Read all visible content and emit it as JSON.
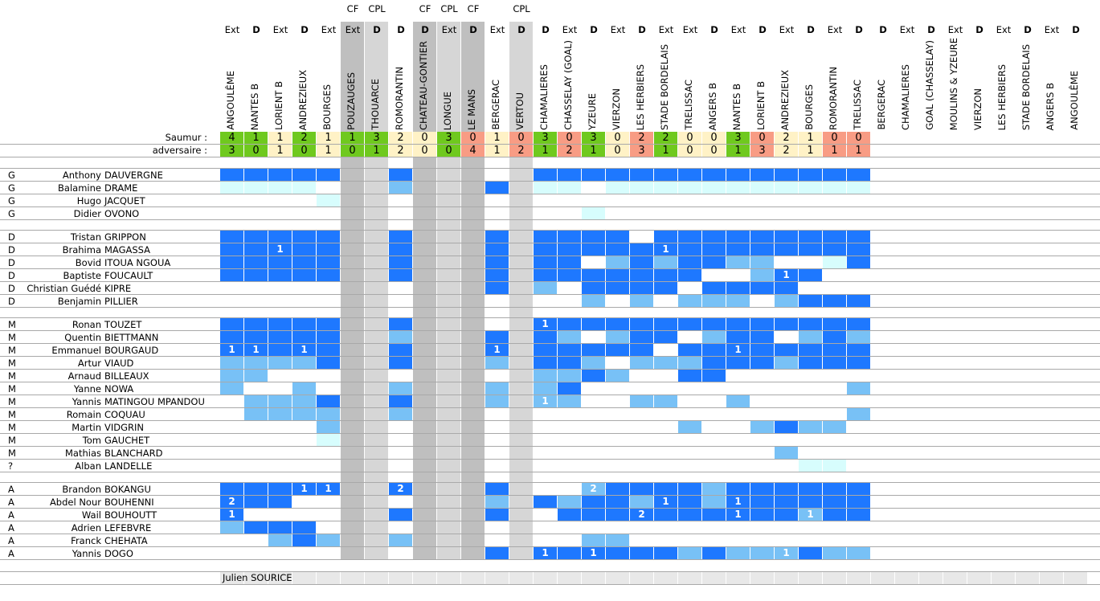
{
  "colors": {
    "win": "#6fc91e",
    "draw": "#fff2c6",
    "loss": "#f89c84",
    "cf_column": "#bfbfbf",
    "cpl_column": "#d6d6d6",
    "level_D": "#1e78ff",
    "level_M": "#78c1f6",
    "level_L": "#d7fdfd",
    "footer": "#e8e8e8"
  },
  "level_codes": {
    "D": "full match",
    "M": "partial",
    "L": "bench",
    ".": "none"
  },
  "score_labels": {
    "saumur": "Saumur :",
    "adversaire": "adversaire :"
  },
  "columns": [
    {
      "opponent": "ANGOULÊME",
      "venue": "Ext",
      "competition": ""
    },
    {
      "opponent": "NANTES B",
      "venue": "D",
      "competition": ""
    },
    {
      "opponent": "LORIENT B",
      "venue": "Ext",
      "competition": ""
    },
    {
      "opponent": "ANDREZIEUX",
      "venue": "D",
      "competition": ""
    },
    {
      "opponent": "BOURGES",
      "venue": "Ext",
      "competition": ""
    },
    {
      "opponent": "POUZAUGES",
      "venue": "Ext",
      "competition": "CF"
    },
    {
      "opponent": "THOUARCE",
      "venue": "D",
      "competition": "CPL"
    },
    {
      "opponent": "ROMORANTIN",
      "venue": "D",
      "competition": ""
    },
    {
      "opponent": "CHATEAU-GONTIER",
      "venue": "D",
      "competition": "CF"
    },
    {
      "opponent": "LONGUE",
      "venue": "Ext",
      "competition": "CPL"
    },
    {
      "opponent": "LE MANS",
      "venue": "D",
      "competition": "CF"
    },
    {
      "opponent": "BERGERAC",
      "venue": "Ext",
      "competition": ""
    },
    {
      "opponent": "VERTOU",
      "venue": "D",
      "competition": "CPL"
    },
    {
      "opponent": "CHAMALIERES",
      "venue": "D",
      "competition": ""
    },
    {
      "opponent": "CHASSELAY (GOAL)",
      "venue": "Ext",
      "competition": ""
    },
    {
      "opponent": "YZEURE",
      "venue": "D",
      "competition": ""
    },
    {
      "opponent": "VIERZON",
      "venue": "Ext",
      "competition": ""
    },
    {
      "opponent": "LES HERBIERS",
      "venue": "D",
      "competition": ""
    },
    {
      "opponent": "STADE BORDELAIS",
      "venue": "Ext",
      "competition": ""
    },
    {
      "opponent": "TRELISSAC",
      "venue": "Ext",
      "competition": ""
    },
    {
      "opponent": "ANGERS B",
      "venue": "D",
      "competition": ""
    },
    {
      "opponent": "NANTES B",
      "venue": "Ext",
      "competition": ""
    },
    {
      "opponent": "LORIENT B",
      "venue": "D",
      "competition": ""
    },
    {
      "opponent": "ANDREZIEUX",
      "venue": "Ext",
      "competition": ""
    },
    {
      "opponent": "BOURGES",
      "venue": "D",
      "competition": ""
    },
    {
      "opponent": "ROMORANTIN",
      "venue": "Ext",
      "competition": ""
    },
    {
      "opponent": "TRELISSAC",
      "venue": "D",
      "competition": ""
    },
    {
      "opponent": "BERGERAC",
      "venue": "D",
      "competition": ""
    },
    {
      "opponent": "CHAMALIERES",
      "venue": "Ext",
      "competition": ""
    },
    {
      "opponent": "GOAL (CHASSELAY)",
      "venue": "D",
      "competition": ""
    },
    {
      "opponent": "MOULINS & YZEURE",
      "venue": "Ext",
      "competition": ""
    },
    {
      "opponent": "VIERZON",
      "venue": "D",
      "competition": ""
    },
    {
      "opponent": "LES HERBIERS",
      "venue": "Ext",
      "competition": ""
    },
    {
      "opponent": "STADE BORDELAIS",
      "venue": "D",
      "competition": ""
    },
    {
      "opponent": "ANGERS B",
      "venue": "Ext",
      "competition": ""
    },
    {
      "opponent": "ANGOULÊME",
      "venue": "D",
      "competition": ""
    }
  ],
  "scores": {
    "saumur": [
      4,
      1,
      1,
      2,
      1,
      1,
      3,
      2,
      0,
      3,
      0,
      1,
      0,
      3,
      0,
      3,
      0,
      2,
      2,
      0,
      0,
      3,
      0,
      2,
      1,
      0,
      0
    ],
    "adversaire": [
      3,
      0,
      1,
      0,
      1,
      0,
      1,
      2,
      0,
      0,
      4,
      1,
      2,
      1,
      2,
      1,
      0,
      3,
      1,
      0,
      0,
      1,
      3,
      2,
      1,
      1,
      1
    ]
  },
  "groups": [
    {
      "players": [
        {
          "pos": "G",
          "first": "Anthony",
          "last": "DAUVERGNE",
          "cells": "DDDDD..D.....DDDDDDDDDDDDDD",
          "goals": {}
        },
        {
          "pos": "G",
          "first": "Balamine",
          "last": "DRAME",
          "cells": "LLLL...M...D.LL.LLLLLLLLLLL",
          "goals": {}
        },
        {
          "pos": "G",
          "first": "Hugo",
          "last": "JACQUET",
          "cells": "....L......................",
          "goals": {}
        },
        {
          "pos": "G",
          "first": "Didier",
          "last": "OVONO",
          "cells": "...............L...........",
          "goals": {}
        }
      ]
    },
    {
      "players": [
        {
          "pos": "D",
          "first": "Tristan",
          "last": "GRIPPON",
          "cells": "DDDDD..D...D.DDDD.DDDDDDDDD",
          "goals": {}
        },
        {
          "pos": "D",
          "first": "Brahima",
          "last": "MAGASSA",
          "cells": "DDDDD..D...D.DDDDDDDDDDDDDD",
          "goals": {
            "3": 1,
            "19": 1
          }
        },
        {
          "pos": "D",
          "first": "Bovid",
          "last": "ITOUA NGOUA",
          "cells": "DDDDD..D...D.DD.MDMDDMM..LD",
          "goals": {}
        },
        {
          "pos": "D",
          "first": "Baptiste",
          "last": "FOUCAULT",
          "cells": "DDDDD..D...D.DDDDDDD..MDD..",
          "goals": {
            "24": 1
          }
        },
        {
          "pos": "D",
          "first": "Christian Guédé",
          "last": "KIPRE",
          "cells": "...........D.M.DDDD.DDDD...",
          "goals": {}
        },
        {
          "pos": "D",
          "first": "Benjamin",
          "last": "PILLIER",
          "cells": "...............M.M.MMM.MDDD",
          "goals": {}
        }
      ]
    },
    {
      "players": [
        {
          "pos": "M",
          "first": "Ronan",
          "last": "TOUZET",
          "cells": "DDDDD..D.....DDDDDDDDDDDDDD",
          "goals": {
            "14": 1
          }
        },
        {
          "pos": "M",
          "first": "Quentin",
          "last": "BIETTMANN",
          "cells": "DDDDD..M...D.DM.MDD.MDD.MDM",
          "goals": {}
        },
        {
          "pos": "M",
          "first": "Emmanuel",
          "last": "BOURGAUD",
          "cells": "DDDDD..D...D.DDDDD.DDDDDDDD",
          "goals": {
            "1": 1,
            "2": 1,
            "4": 1,
            "12": 1,
            "22": 1
          }
        },
        {
          "pos": "M",
          "first": "Artur",
          "last": "VIAUD",
          "cells": "MMMMD..D...M.DDM.MMMDDDMDDD",
          "goals": {}
        },
        {
          "pos": "M",
          "first": "Arnaud",
          "last": "BILLEAUX",
          "cells": "MM...........MMDM..DD......",
          "goals": {}
        },
        {
          "pos": "M",
          "first": "Yanne",
          "last": "NOWA",
          "cells": "M..M...M...M.MD...........M",
          "goals": {}
        },
        {
          "pos": "M",
          "first": "Yannis",
          "last": "MATINGOU MPANDOU",
          "cells": ".MMMD..D...M.MM..MM..M.....",
          "goals": {
            "14": 1
          }
        },
        {
          "pos": "M",
          "first": "Romain",
          "last": "COQUAU",
          "cells": ".MMMM..M..................M",
          "goals": {}
        },
        {
          "pos": "M",
          "first": "Martin",
          "last": "VIDGRIN",
          "cells": "....M..............M..MDMM.",
          "goals": {}
        },
        {
          "pos": "M",
          "first": "Tom",
          "last": "GAUCHET",
          "cells": "....L......................",
          "goals": {}
        },
        {
          "pos": "M",
          "first": "Mathias",
          "last": "BLANCHARD",
          "cells": ".......................M...",
          "goals": {}
        },
        {
          "pos": "?",
          "first": "Alban",
          "last": "LANDELLE",
          "cells": "........................LL.",
          "goals": {}
        }
      ]
    },
    {
      "players": [
        {
          "pos": "A",
          "first": "Brandon",
          "last": "BOKANGU",
          "cells": "DDDDD..D...D...MDDDDMDDDDDD",
          "goals": {
            "4": 1,
            "5": 1,
            "8": 2,
            "16": 2
          }
        },
        {
          "pos": "A",
          "first": "Abdel Nour",
          "last": "BOUHENNI",
          "cells": "DDD........M.DMDDMDDMDDDDDD",
          "goals": {
            "1": 2,
            "19": 1,
            "22": 1
          }
        },
        {
          "pos": "A",
          "first": "Wail",
          "last": "BOUHOUTT",
          "cells": "D......D...D..DDDDDDDDDDMDD",
          "goals": {
            "1": 1,
            "18": 2,
            "22": 1,
            "25": 1
          }
        },
        {
          "pos": "A",
          "first": "Adrien",
          "last": "LEFEBVRE",
          "cells": "MDDD.......................",
          "goals": {}
        },
        {
          "pos": "A",
          "first": "Franck",
          "last": "CHEHATA",
          "cells": "..MDM..M.......MM..........",
          "goals": {}
        },
        {
          "pos": "A",
          "first": "Yannis",
          "last": "DOGO",
          "cells": "...........D.DDDDDDMDMMMDMM",
          "goals": {
            "14": 1,
            "16": 1,
            "24": 1
          }
        }
      ]
    }
  ],
  "footer": {
    "coach": "Julien SOURICE"
  }
}
